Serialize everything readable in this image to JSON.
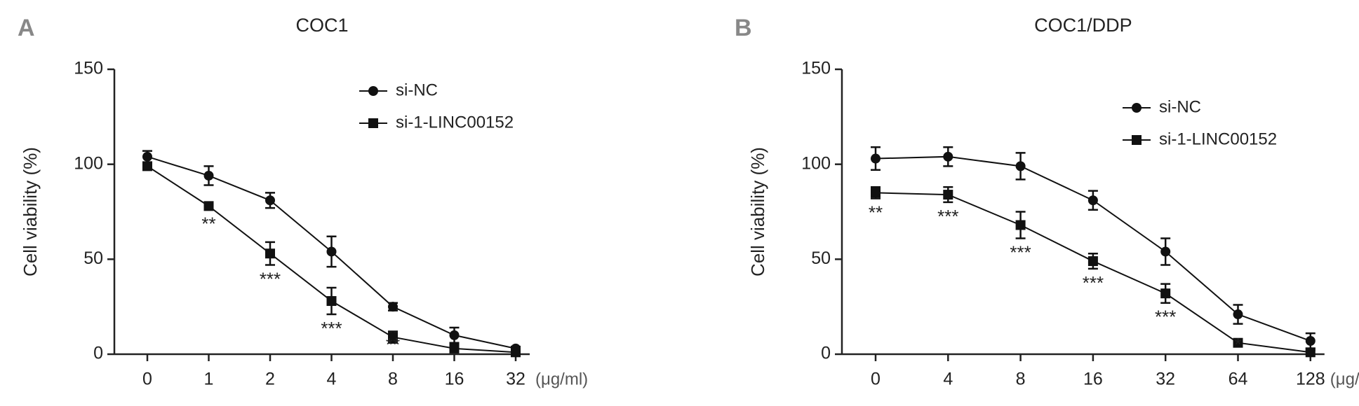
{
  "chart_data": [
    {
      "type": "line",
      "panel_label": "A",
      "title": "COC1",
      "y_label": "Cell viability (%)",
      "x_unit": "(μg/ml)",
      "categories": [
        "0",
        "1",
        "2",
        "4",
        "8",
        "16",
        "32"
      ],
      "ylim": [
        0,
        150
      ],
      "yticks": [
        0,
        50,
        100,
        150
      ],
      "series": [
        {
          "name": "si-NC",
          "color": "#111111",
          "marker": "circle",
          "values": [
            104,
            94,
            81,
            54,
            25,
            10,
            3
          ],
          "errors": [
            3,
            5,
            4,
            8,
            2,
            4,
            1
          ]
        },
        {
          "name": "si-1-LINC00152",
          "color": "#111111",
          "marker": "square",
          "values": [
            99,
            78,
            53,
            28,
            9,
            3,
            1
          ],
          "errors": [
            2,
            2,
            6,
            7,
            3,
            2,
            1
          ]
        }
      ],
      "annotations": [
        null,
        "**",
        "***",
        "***",
        "**",
        null,
        null
      ]
    },
    {
      "type": "line",
      "panel_label": "B",
      "title": "COC1/DDP",
      "y_label": "Cell viability (%)",
      "x_unit": "(μg/ml)",
      "categories": [
        "0",
        "4",
        "8",
        "16",
        "32",
        "64",
        "128"
      ],
      "ylim": [
        0,
        150
      ],
      "yticks": [
        0,
        50,
        100,
        150
      ],
      "series": [
        {
          "name": "si-NC",
          "color": "#111111",
          "marker": "circle",
          "values": [
            103,
            104,
            99,
            81,
            54,
            21,
            7
          ],
          "errors": [
            6,
            5,
            7,
            5,
            7,
            5,
            4
          ]
        },
        {
          "name": "si-1-LINC00152",
          "color": "#111111",
          "marker": "square",
          "values": [
            85,
            84,
            68,
            49,
            32,
            6,
            1
          ],
          "errors": [
            3,
            4,
            7,
            4,
            5,
            1,
            1
          ]
        }
      ],
      "annotations": [
        "**",
        "***",
        "***",
        "***",
        "***",
        "*",
        null
      ]
    }
  ]
}
